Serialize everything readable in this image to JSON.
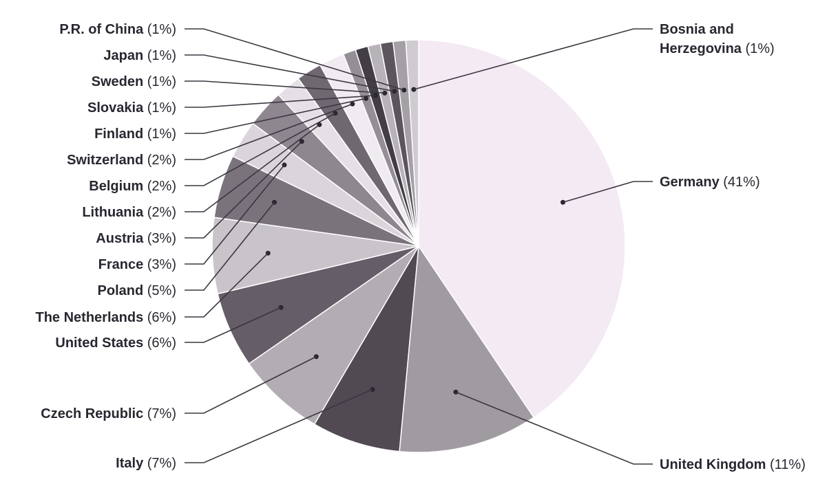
{
  "chart_data": {
    "type": "pie",
    "title": "",
    "legend": "none",
    "start_angle_deg": 0,
    "direction": "clockwise",
    "slices": [
      {
        "name": "Germany",
        "value": 41,
        "label": "(41%)",
        "color": "#f4eaf3",
        "side": "right",
        "label_y": 264
      },
      {
        "name": "United Kingdom",
        "value": 11,
        "label": "(11%)",
        "color": "#a09aa1",
        "side": "right",
        "label_y": 675
      },
      {
        "name": "Italy",
        "value": 7,
        "label": "(7%)",
        "color": "#514a53",
        "side": "left",
        "label_y": 673
      },
      {
        "name": "Czech Republic",
        "value": 7,
        "label": "(7%)",
        "color": "#b2acb3",
        "side": "left",
        "label_y": 601
      },
      {
        "name": "United States",
        "value": 6,
        "label": "(6%)",
        "color": "#655d67",
        "side": "left",
        "label_y": 498
      },
      {
        "name": "The Netherlands",
        "value": 6,
        "label": "(6%)",
        "color": "#c9c3ca",
        "side": "left",
        "label_y": 461
      },
      {
        "name": "Poland",
        "value": 5,
        "label": "(5%)",
        "color": "#7a737c",
        "side": "left",
        "label_y": 422
      },
      {
        "name": "France",
        "value": 3,
        "label": "(3%)",
        "color": "#dbd5db",
        "side": "left",
        "label_y": 384
      },
      {
        "name": "Austria",
        "value": 3,
        "label": "(3%)",
        "color": "#8e8790",
        "side": "left",
        "label_y": 346
      },
      {
        "name": "Lithuania",
        "value": 2,
        "label": "(2%)",
        "color": "#e6e0e6",
        "side": "left",
        "label_y": 308
      },
      {
        "name": "Belgium",
        "value": 2,
        "label": "(2%)",
        "color": "#6f6871",
        "side": "left",
        "label_y": 270
      },
      {
        "name": "Switzerland",
        "value": 2,
        "label": "(2%)",
        "color": "#f0ebf0",
        "side": "left",
        "label_y": 232
      },
      {
        "name": "Finland",
        "value": 1,
        "label": "(1%)",
        "color": "#958e97",
        "side": "left",
        "label_y": 194
      },
      {
        "name": "Slovakia",
        "value": 1,
        "label": "(1%)",
        "color": "#433d45",
        "side": "left",
        "label_y": 156
      },
      {
        "name": "Sweden",
        "value": 1,
        "label": "(1%)",
        "color": "#b8b2b9",
        "side": "left",
        "label_y": 118
      },
      {
        "name": "Japan",
        "value": 1,
        "label": "(1%)",
        "color": "#5c555e",
        "side": "left",
        "label_y": 80
      },
      {
        "name": "P.R. of China",
        "value": 1,
        "label": "(1%)",
        "color": "#a59fa6",
        "side": "left",
        "label_y": 42
      },
      {
        "name": "Bosnia and Herzegovina",
        "name_lines": [
          "Bosnia and",
          "Herzegovina"
        ],
        "value": 1,
        "label": "(1%)",
        "color": "#d0cad1",
        "side": "right",
        "label_y": 42
      }
    ]
  }
}
